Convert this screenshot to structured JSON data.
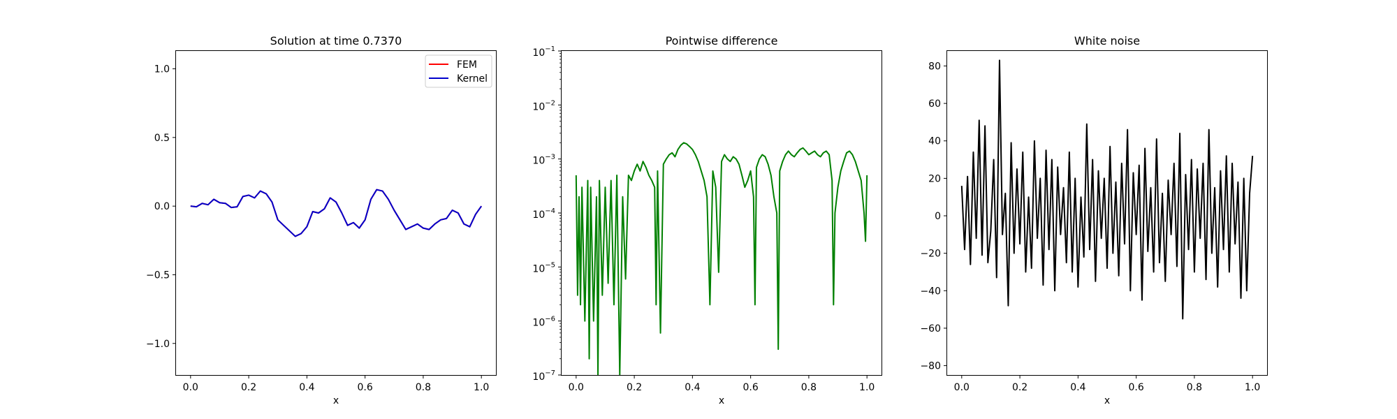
{
  "chart_data": [
    {
      "type": "line",
      "title": "Solution at time 0.7370",
      "xlabel": "x",
      "ylabel": "",
      "xlim": [
        -0.05,
        1.05
      ],
      "ylim": [
        -1.23,
        1.13
      ],
      "x_ticks": [
        0.0,
        0.2,
        0.4,
        0.6,
        0.8,
        1.0
      ],
      "x_tick_labels": [
        "0.0",
        "0.2",
        "0.4",
        "0.6",
        "0.8",
        "1.0"
      ],
      "y_ticks": [
        -1.0,
        -0.5,
        0.0,
        0.5,
        1.0
      ],
      "y_tick_labels": [
        "−1.0",
        "−0.5",
        "0.0",
        "0.5",
        "1.0"
      ],
      "legend": {
        "position": "top-right",
        "entries": [
          "FEM",
          "Kernel"
        ]
      },
      "series": [
        {
          "name": "FEM",
          "color": "#ff0000",
          "x": [
            0.0,
            0.02,
            0.04,
            0.06,
            0.08,
            0.1,
            0.12,
            0.14,
            0.16,
            0.18,
            0.2,
            0.22,
            0.24,
            0.26,
            0.28,
            0.3,
            0.32,
            0.34,
            0.36,
            0.38,
            0.4,
            0.42,
            0.44,
            0.46,
            0.48,
            0.5,
            0.52,
            0.54,
            0.56,
            0.58,
            0.6,
            0.62,
            0.64,
            0.66,
            0.68,
            0.7,
            0.72,
            0.74,
            0.76,
            0.78,
            0.8,
            0.82,
            0.84,
            0.86,
            0.88,
            0.9,
            0.92,
            0.94,
            0.96,
            0.98,
            1.0
          ],
          "y": [
            0.0,
            -0.005,
            0.02,
            0.01,
            0.05,
            0.025,
            0.02,
            -0.01,
            -0.005,
            0.07,
            0.08,
            0.06,
            0.11,
            0.09,
            0.03,
            -0.1,
            -0.14,
            -0.18,
            -0.22,
            -0.2,
            -0.15,
            -0.04,
            -0.05,
            -0.02,
            0.06,
            0.03,
            -0.05,
            -0.14,
            -0.12,
            -0.16,
            -0.1,
            0.05,
            0.12,
            0.11,
            0.05,
            -0.03,
            -0.1,
            -0.17,
            -0.15,
            -0.13,
            -0.16,
            -0.17,
            -0.13,
            -0.1,
            -0.09,
            -0.03,
            -0.05,
            -0.13,
            -0.15,
            -0.06,
            0.0
          ]
        },
        {
          "name": "Kernel",
          "color": "#0000cc",
          "x": [
            0.0,
            0.02,
            0.04,
            0.06,
            0.08,
            0.1,
            0.12,
            0.14,
            0.16,
            0.18,
            0.2,
            0.22,
            0.24,
            0.26,
            0.28,
            0.3,
            0.32,
            0.34,
            0.36,
            0.38,
            0.4,
            0.42,
            0.44,
            0.46,
            0.48,
            0.5,
            0.52,
            0.54,
            0.56,
            0.58,
            0.6,
            0.62,
            0.64,
            0.66,
            0.68,
            0.7,
            0.72,
            0.74,
            0.76,
            0.78,
            0.8,
            0.82,
            0.84,
            0.86,
            0.88,
            0.9,
            0.92,
            0.94,
            0.96,
            0.98,
            1.0
          ],
          "y": [
            0.0,
            -0.005,
            0.02,
            0.01,
            0.05,
            0.025,
            0.02,
            -0.01,
            -0.005,
            0.07,
            0.08,
            0.06,
            0.11,
            0.09,
            0.03,
            -0.1,
            -0.14,
            -0.18,
            -0.22,
            -0.2,
            -0.15,
            -0.04,
            -0.05,
            -0.02,
            0.06,
            0.03,
            -0.05,
            -0.14,
            -0.12,
            -0.16,
            -0.1,
            0.05,
            0.12,
            0.11,
            0.05,
            -0.03,
            -0.1,
            -0.17,
            -0.15,
            -0.13,
            -0.16,
            -0.17,
            -0.13,
            -0.1,
            -0.09,
            -0.03,
            -0.05,
            -0.13,
            -0.15,
            -0.06,
            0.0
          ]
        }
      ]
    },
    {
      "type": "line",
      "title": "Pointwise difference",
      "xlabel": "x",
      "ylabel": "",
      "yscale": "log",
      "xlim": [
        -0.05,
        1.05
      ],
      "ylim": [
        1e-07,
        0.1
      ],
      "x_ticks": [
        0.0,
        0.2,
        0.4,
        0.6,
        0.8,
        1.0
      ],
      "x_tick_labels": [
        "0.0",
        "0.2",
        "0.4",
        "0.6",
        "0.8",
        "1.0"
      ],
      "y_ticks": [
        1e-07,
        1e-06,
        1e-05,
        0.0001,
        0.001,
        0.01,
        0.1
      ],
      "y_tick_exponents": [
        "−7",
        "−6",
        "−5",
        "−4",
        "−3",
        "−2",
        "−1"
      ],
      "y_tick_base": "10",
      "series": [
        {
          "color": "#008000",
          "x": [
            0.0,
            0.005,
            0.01,
            0.015,
            0.02,
            0.03,
            0.04,
            0.045,
            0.05,
            0.06,
            0.07,
            0.075,
            0.08,
            0.09,
            0.1,
            0.11,
            0.12,
            0.13,
            0.14,
            0.15,
            0.16,
            0.17,
            0.18,
            0.19,
            0.2,
            0.21,
            0.22,
            0.23,
            0.24,
            0.25,
            0.26,
            0.27,
            0.275,
            0.28,
            0.29,
            0.3,
            0.31,
            0.32,
            0.33,
            0.34,
            0.35,
            0.36,
            0.37,
            0.38,
            0.39,
            0.4,
            0.41,
            0.42,
            0.43,
            0.44,
            0.45,
            0.46,
            0.47,
            0.48,
            0.49,
            0.5,
            0.51,
            0.52,
            0.53,
            0.54,
            0.55,
            0.56,
            0.57,
            0.58,
            0.59,
            0.6,
            0.61,
            0.615,
            0.62,
            0.63,
            0.64,
            0.65,
            0.66,
            0.67,
            0.68,
            0.69,
            0.695,
            0.7,
            0.71,
            0.72,
            0.73,
            0.74,
            0.75,
            0.76,
            0.77,
            0.78,
            0.79,
            0.8,
            0.81,
            0.82,
            0.83,
            0.84,
            0.85,
            0.86,
            0.87,
            0.88,
            0.885,
            0.89,
            0.9,
            0.91,
            0.92,
            0.93,
            0.94,
            0.95,
            0.96,
            0.97,
            0.98,
            0.99,
            0.995,
            1.0
          ],
          "y": [
            0.0005,
            3e-06,
            0.0002,
            2e-06,
            0.0003,
            1e-06,
            0.0004,
            2e-07,
            0.0003,
            1e-06,
            0.0002,
            1e-07,
            0.0004,
            3e-06,
            0.0003,
            5e-06,
            0.0004,
            2e-06,
            0.0005,
            1e-07,
            0.0002,
            6e-06,
            0.0005,
            0.0004,
            0.0006,
            0.0008,
            0.0006,
            0.0009,
            0.0007,
            0.0005,
            0.0004,
            0.0003,
            2e-06,
            0.0006,
            6e-07,
            0.0008,
            0.001,
            0.0012,
            0.0013,
            0.0011,
            0.0015,
            0.0018,
            0.002,
            0.0019,
            0.0017,
            0.0015,
            0.0012,
            0.0009,
            0.0006,
            0.0004,
            0.0002,
            2e-06,
            0.0006,
            0.0003,
            8e-06,
            0.0009,
            0.0012,
            0.001,
            0.0009,
            0.0011,
            0.001,
            0.0008,
            0.0005,
            0.0003,
            0.0004,
            0.0006,
            0.0002,
            2e-06,
            0.0007,
            0.001,
            0.0012,
            0.0011,
            0.0008,
            0.0005,
            0.0002,
            0.0001,
            3e-07,
            0.0006,
            0.0009,
            0.0012,
            0.0014,
            0.0012,
            0.0011,
            0.0013,
            0.0015,
            0.0016,
            0.0014,
            0.0012,
            0.0013,
            0.0014,
            0.0012,
            0.0011,
            0.0013,
            0.0014,
            0.0012,
            0.0004,
            2e-06,
            0.0001,
            0.0003,
            0.0006,
            0.0009,
            0.0013,
            0.0014,
            0.0012,
            0.0009,
            0.0006,
            0.0004,
            0.0001,
            3e-05,
            0.0005
          ]
        }
      ]
    },
    {
      "type": "line",
      "title": "White noise",
      "xlabel": "x",
      "ylabel": "",
      "xlim": [
        -0.05,
        1.05
      ],
      "ylim": [
        -85,
        88
      ],
      "x_ticks": [
        0.0,
        0.2,
        0.4,
        0.6,
        0.8,
        1.0
      ],
      "x_tick_labels": [
        "0.0",
        "0.2",
        "0.4",
        "0.6",
        "0.8",
        "1.0"
      ],
      "y_ticks": [
        -80,
        -60,
        -40,
        -20,
        0,
        20,
        40,
        60,
        80
      ],
      "y_tick_labels": [
        "−80",
        "−60",
        "−40",
        "−20",
        "0",
        "20",
        "40",
        "60",
        "80"
      ],
      "series": [
        {
          "color": "#000000",
          "x": [
            0.0,
            0.01,
            0.02,
            0.03,
            0.04,
            0.05,
            0.06,
            0.07,
            0.08,
            0.09,
            0.1,
            0.11,
            0.12,
            0.13,
            0.14,
            0.15,
            0.16,
            0.17,
            0.18,
            0.19,
            0.2,
            0.21,
            0.22,
            0.23,
            0.24,
            0.25,
            0.26,
            0.27,
            0.28,
            0.29,
            0.3,
            0.31,
            0.32,
            0.33,
            0.34,
            0.35,
            0.36,
            0.37,
            0.38,
            0.39,
            0.4,
            0.41,
            0.42,
            0.43,
            0.44,
            0.45,
            0.46,
            0.47,
            0.48,
            0.49,
            0.5,
            0.51,
            0.52,
            0.53,
            0.54,
            0.55,
            0.56,
            0.57,
            0.58,
            0.59,
            0.6,
            0.61,
            0.62,
            0.63,
            0.64,
            0.65,
            0.66,
            0.67,
            0.68,
            0.69,
            0.7,
            0.71,
            0.72,
            0.73,
            0.74,
            0.75,
            0.76,
            0.77,
            0.78,
            0.79,
            0.8,
            0.81,
            0.82,
            0.83,
            0.84,
            0.85,
            0.86,
            0.87,
            0.88,
            0.89,
            0.9,
            0.91,
            0.92,
            0.93,
            0.94,
            0.95,
            0.96,
            0.97,
            0.98,
            0.99,
            1.0
          ],
          "y": [
            16,
            -18,
            21,
            -26,
            34,
            -12,
            51,
            -21,
            48,
            -25,
            -8,
            30,
            -33,
            83,
            -10,
            12,
            -48,
            39,
            -20,
            25,
            -15,
            34,
            -30,
            10,
            -28,
            40,
            -12,
            20,
            -37,
            35,
            -18,
            30,
            -40,
            26,
            -10,
            15,
            -25,
            34,
            -30,
            20,
            -38,
            10,
            -22,
            49,
            -18,
            30,
            -35,
            24,
            -12,
            20,
            -28,
            37,
            -20,
            18,
            -32,
            28,
            -15,
            46,
            -40,
            23,
            -10,
            27,
            -45,
            36,
            -19,
            15,
            -30,
            41,
            -25,
            12,
            -35,
            19,
            -10,
            28,
            -27,
            44,
            -55,
            22,
            -18,
            30,
            -30,
            25,
            -12,
            28,
            -34,
            46,
            -20,
            15,
            -38,
            24,
            -18,
            32,
            -30,
            28,
            -15,
            18,
            -44,
            20,
            -40,
            12,
            32
          ]
        }
      ]
    }
  ]
}
